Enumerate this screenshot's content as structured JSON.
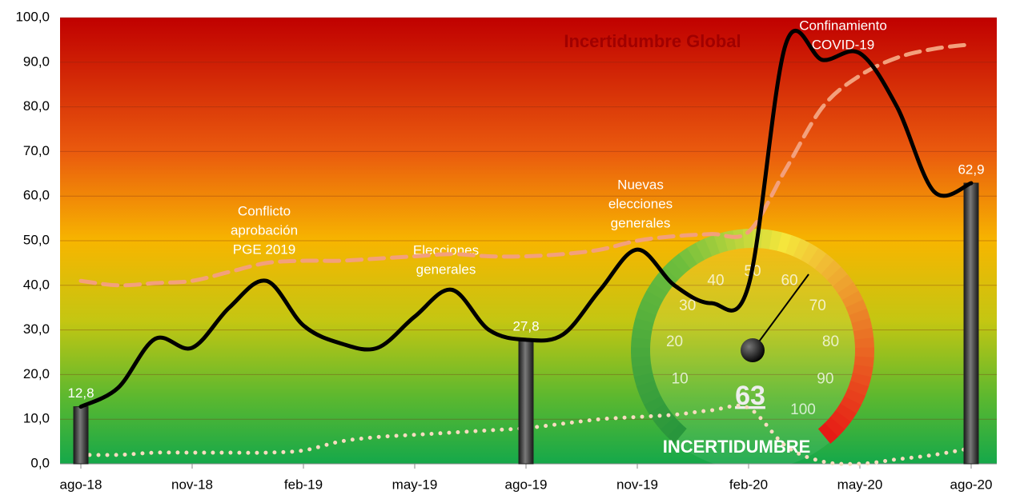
{
  "chart_data": {
    "type": "line",
    "title": "Incertidumbre Global",
    "categories": [
      "ago-18",
      null,
      null,
      "nov-18",
      null,
      null,
      "feb-19",
      null,
      null,
      "may-19",
      null,
      null,
      "ago-19",
      null,
      null,
      "nov-19",
      null,
      null,
      "feb-20",
      null,
      null,
      "may-20",
      null,
      null,
      "ago-20"
    ],
    "ylim": [
      0,
      100
    ],
    "yticks": [
      {
        "value": 0,
        "label": "0,0"
      },
      {
        "value": 10,
        "label": "10,0"
      },
      {
        "value": 20,
        "label": "20,0"
      },
      {
        "value": 30,
        "label": "30,0"
      },
      {
        "value": 40,
        "label": "40,0"
      },
      {
        "value": 50,
        "label": "50,0"
      },
      {
        "value": 60,
        "label": "60,0"
      },
      {
        "value": 70,
        "label": "70,0"
      },
      {
        "value": 80,
        "label": "80,0"
      },
      {
        "value": 90,
        "label": "90,0"
      },
      {
        "value": 100,
        "label": "100,0"
      }
    ],
    "grid": true,
    "series": [
      {
        "kind": "bar",
        "color": "#3a3a3a",
        "values": [
          12.8,
          null,
          null,
          null,
          null,
          null,
          null,
          null,
          null,
          null,
          null,
          null,
          27.8,
          null,
          null,
          null,
          null,
          null,
          null,
          null,
          null,
          null,
          null,
          null,
          62.9
        ],
        "value_labels": [
          "12,8",
          null,
          null,
          null,
          null,
          null,
          null,
          null,
          null,
          null,
          null,
          null,
          "27,8",
          null,
          null,
          null,
          null,
          null,
          null,
          null,
          null,
          null,
          null,
          null,
          "62,9"
        ]
      },
      {
        "kind": "line",
        "style": "dashed",
        "color": "#f3a07c",
        "values": [
          41,
          40,
          40.5,
          41,
          43,
          45,
          45.5,
          45.5,
          46,
          46.5,
          47,
          46.5,
          46.5,
          47,
          48,
          50,
          51,
          51.5,
          52,
          66,
          80,
          87,
          91,
          93,
          94
        ]
      },
      {
        "kind": "line",
        "style": "dotted",
        "color": "#f8dcc0",
        "values": [
          2,
          2,
          2.5,
          2.5,
          2.5,
          2.5,
          3,
          5,
          6,
          6.5,
          7,
          7.5,
          8,
          9,
          10,
          10.5,
          11,
          12,
          12.5,
          4,
          0.5,
          0,
          1,
          2,
          3.5
        ]
      },
      {
        "kind": "line",
        "style": "solid",
        "color": "#000000",
        "values": [
          12.8,
          17,
          28,
          26,
          35,
          41,
          31,
          27,
          26,
          33,
          39,
          30,
          27.8,
          29,
          39,
          48,
          40,
          36,
          40,
          94,
          90.5,
          92,
          80,
          61,
          62.9
        ]
      }
    ],
    "annotations": [
      {
        "lines": [
          "Conflicto",
          "aprobación",
          "PGE 2019"
        ]
      },
      {
        "lines": [
          "Elecciones",
          "generales"
        ]
      },
      {
        "lines": [
          "Nuevas",
          "elecciones",
          "generales"
        ]
      },
      {
        "lines": [
          "Confinamiento",
          "COVID-19"
        ]
      }
    ],
    "gauge": {
      "value": 63,
      "lim": [
        0,
        100
      ],
      "ticks": [
        10,
        20,
        30,
        40,
        50,
        60,
        70,
        80,
        90,
        100
      ],
      "label": "INCERTIDUMBRE"
    }
  }
}
